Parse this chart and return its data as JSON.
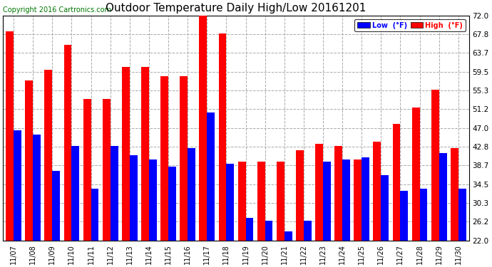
{
  "title": "Outdoor Temperature Daily High/Low 20161201",
  "copyright": "Copyright 2016 Cartronics.com",
  "legend_low": "Low  (°F)",
  "legend_high": "High  (°F)",
  "dates": [
    "11/07",
    "11/08",
    "11/09",
    "11/10",
    "11/11",
    "11/12",
    "11/13",
    "11/14",
    "11/15",
    "11/16",
    "11/17",
    "11/18",
    "11/19",
    "11/20",
    "11/21",
    "11/22",
    "11/23",
    "11/24",
    "11/25",
    "11/26",
    "11/27",
    "11/28",
    "11/29",
    "11/30"
  ],
  "high_vals": [
    68.5,
    57.5,
    60.0,
    65.5,
    53.5,
    53.5,
    60.5,
    60.5,
    58.5,
    58.5,
    72.0,
    68.0,
    39.5,
    39.5,
    39.5,
    42.0,
    43.5,
    43.0,
    40.0,
    44.0,
    48.0,
    51.5,
    55.5,
    42.5
  ],
  "low_vals": [
    46.5,
    45.5,
    37.5,
    43.0,
    33.5,
    43.0,
    41.0,
    40.0,
    38.5,
    42.5,
    50.5,
    39.0,
    27.0,
    26.5,
    24.0,
    26.5,
    39.5,
    40.0,
    40.5,
    36.5,
    33.0,
    33.5,
    41.5,
    33.5
  ],
  "ylim": [
    22.0,
    72.0
  ],
  "yticks": [
    22.0,
    26.2,
    30.3,
    34.5,
    38.7,
    42.8,
    47.0,
    51.2,
    55.3,
    59.5,
    63.7,
    67.8,
    72.0
  ],
  "high_color": "#ff0000",
  "low_color": "#0000ff",
  "bg_color": "#ffffff",
  "grid_color": "#aaaaaa",
  "title_fontsize": 11,
  "copyright_fontsize": 7,
  "bar_width": 0.4
}
